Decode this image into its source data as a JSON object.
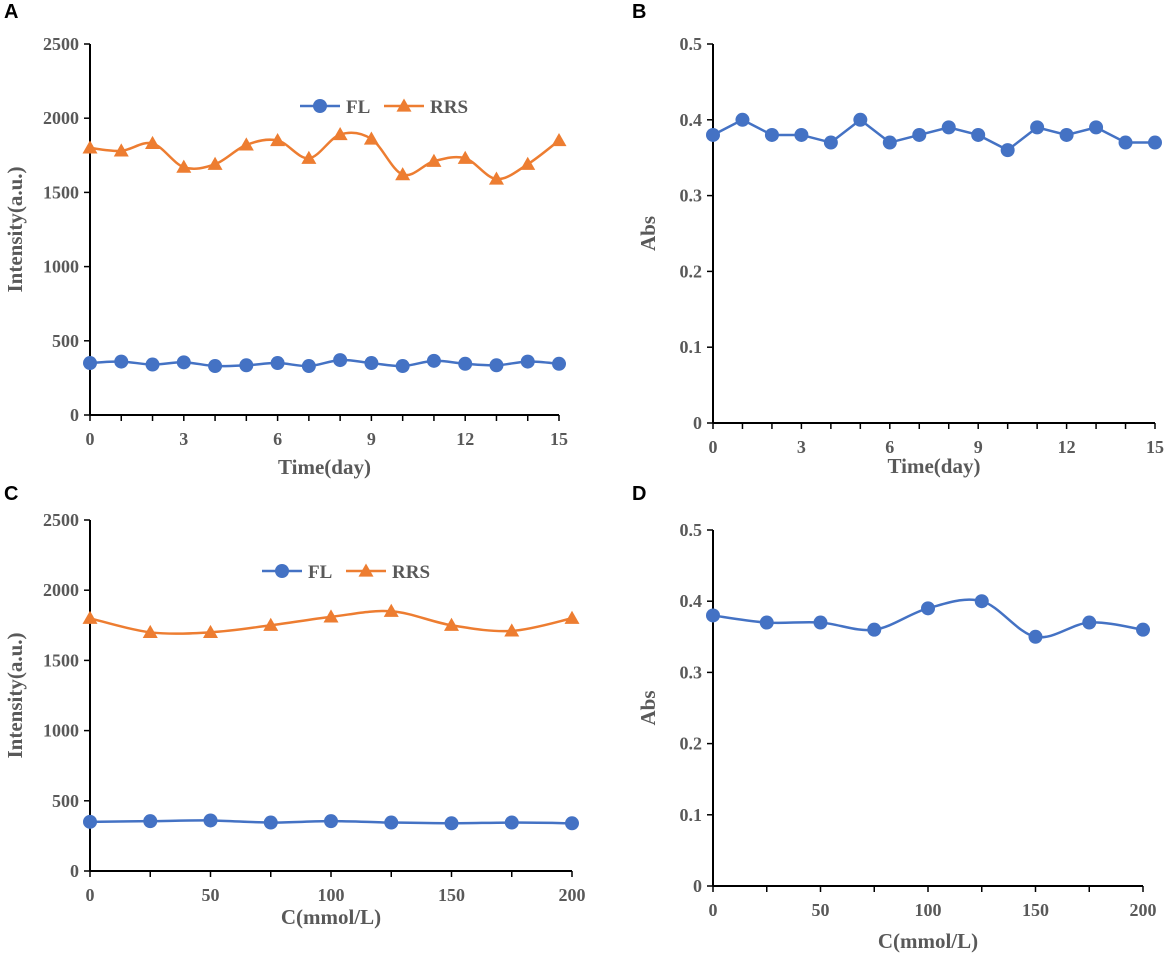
{
  "colors": {
    "FL": "#4472C4",
    "RRS": "#ED7D31",
    "axis": "#000000",
    "text": "#595959"
  },
  "chart_data": [
    {
      "panel": "A",
      "type": "line",
      "xlabel": "Time(day)",
      "ylabel": "Intensity(a.u.)",
      "xlim": [
        0,
        15
      ],
      "ylim": [
        0,
        2500
      ],
      "xticks": [
        0,
        3,
        6,
        9,
        12,
        15
      ],
      "yticks": [
        0,
        500,
        1000,
        1500,
        2000,
        2500
      ],
      "legend": "top-center",
      "smooth": true,
      "x": [
        0,
        1,
        2,
        3,
        4,
        5,
        6,
        7,
        8,
        9,
        10,
        11,
        12,
        13,
        14,
        15
      ],
      "series": [
        {
          "name": "FL",
          "marker": "circle",
          "color": "#4472C4",
          "values": [
            350,
            360,
            340,
            355,
            330,
            335,
            350,
            330,
            370,
            350,
            330,
            365,
            345,
            335,
            360,
            345
          ]
        },
        {
          "name": "RRS",
          "marker": "triangle",
          "color": "#ED7D31",
          "values": [
            1800,
            1780,
            1830,
            1670,
            1690,
            1820,
            1850,
            1730,
            1890,
            1860,
            1620,
            1710,
            1730,
            1590,
            1690,
            1850
          ]
        }
      ]
    },
    {
      "panel": "B",
      "type": "line",
      "xlabel": "Time(day)",
      "ylabel": "Abs",
      "xlim": [
        0,
        15
      ],
      "ylim": [
        0,
        0.5
      ],
      "xticks": [
        0,
        3,
        6,
        9,
        12,
        15
      ],
      "yticks": [
        0,
        0.1,
        0.2,
        0.3,
        0.4,
        0.5
      ],
      "smooth": false,
      "x": [
        0,
        1,
        2,
        3,
        4,
        5,
        6,
        7,
        8,
        9,
        10,
        11,
        12,
        13,
        14,
        15
      ],
      "series": [
        {
          "name": "Abs",
          "marker": "circle",
          "color": "#4472C4",
          "values": [
            0.38,
            0.4,
            0.38,
            0.38,
            0.37,
            0.4,
            0.37,
            0.38,
            0.39,
            0.38,
            0.36,
            0.39,
            0.38,
            0.39,
            0.37,
            0.37
          ]
        }
      ]
    },
    {
      "panel": "C",
      "type": "line",
      "xlabel": "C(mmol/L)",
      "ylabel": "Intensity(a.u.)",
      "xlim": [
        0,
        200
      ],
      "ylim": [
        0,
        2500
      ],
      "xticks": [
        0,
        50,
        100,
        150,
        200
      ],
      "yticks": [
        0,
        500,
        1000,
        1500,
        2000,
        2500
      ],
      "legend": "top-center",
      "smooth": true,
      "x": [
        0,
        25,
        50,
        75,
        100,
        125,
        150,
        175,
        200
      ],
      "series": [
        {
          "name": "FL",
          "marker": "circle",
          "color": "#4472C4",
          "values": [
            350,
            355,
            360,
            345,
            355,
            345,
            340,
            345,
            340
          ]
        },
        {
          "name": "RRS",
          "marker": "triangle",
          "color": "#ED7D31",
          "values": [
            1800,
            1700,
            1700,
            1750,
            1810,
            1850,
            1750,
            1710,
            1800
          ]
        }
      ]
    },
    {
      "panel": "D",
      "type": "line",
      "xlabel": "C(mmol/L)",
      "ylabel": "Abs",
      "xlim": [
        0,
        200
      ],
      "ylim": [
        0,
        0.5
      ],
      "xticks": [
        0,
        50,
        100,
        150,
        200
      ],
      "yticks": [
        0,
        0.1,
        0.2,
        0.3,
        0.4,
        0.5
      ],
      "smooth": true,
      "x": [
        0,
        25,
        50,
        75,
        100,
        125,
        150,
        175,
        200
      ],
      "series": [
        {
          "name": "Abs",
          "marker": "circle",
          "color": "#4472C4",
          "values": [
            0.38,
            0.37,
            0.37,
            0.36,
            0.39,
            0.4,
            0.35,
            0.37,
            0.36
          ]
        }
      ]
    }
  ]
}
